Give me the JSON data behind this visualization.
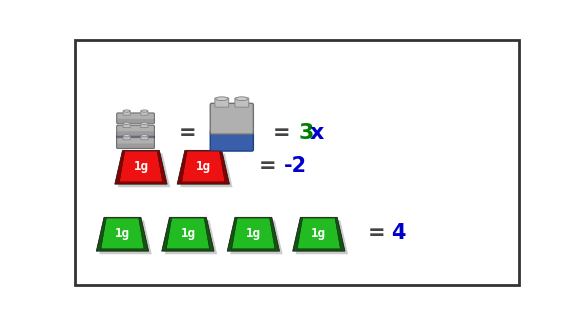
{
  "bg_color": "#ffffff",
  "border_color": "#333333",
  "lego_grey_top": "#a8a8a8",
  "lego_grey_mid": "#909090",
  "lego_grey_dark": "#707070",
  "lego_blue": "#3a5faa",
  "lego_blue_dark": "#1a3f8a",
  "stud_color": "#b8b8b8",
  "red_bright": "#ee1111",
  "red_dark": "#880000",
  "red_shadow": "#220000",
  "green_bright": "#22bb22",
  "green_dark": "#115511",
  "green_shadow": "#001100",
  "mass_label": "1g",
  "eq_sign": "=",
  "label_3": "3",
  "label_x": "x",
  "label_neg2": "-2",
  "label_4": "4",
  "color_3": "#008000",
  "color_x": "#0000cc",
  "color_eq": "#444444",
  "color_neg2": "#0000cc",
  "color_4": "#0000cc"
}
